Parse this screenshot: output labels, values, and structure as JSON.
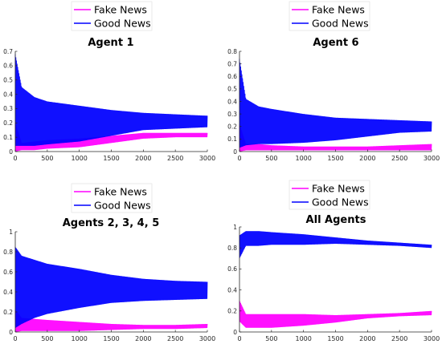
{
  "colors": {
    "fake": "#ff00ff",
    "good": "#0000ff",
    "axis": "#262626",
    "grid_bg": "#ffffff"
  },
  "chart_data": [
    {
      "type": "line",
      "title": "Agent 1",
      "xlim": [
        0,
        3000
      ],
      "ylim": [
        0,
        0.7
      ],
      "xticks": [
        0,
        500,
        1000,
        1500,
        2000,
        2500,
        3000
      ],
      "yticks": [
        0,
        0.1,
        0.2,
        0.3,
        0.4,
        0.5,
        0.6,
        0.7
      ],
      "legend": "top-left, outside",
      "series": [
        {
          "name": "Fake News",
          "x": [
            0,
            100,
            300,
            500,
            1000,
            1500,
            2000,
            2500,
            3000
          ],
          "upper": [
            0.2,
            0.06,
            0.07,
            0.08,
            0.09,
            0.11,
            0.13,
            0.13,
            0.13
          ],
          "lower": [
            0.0,
            0.01,
            0.01,
            0.02,
            0.03,
            0.06,
            0.09,
            0.1,
            0.1
          ]
        },
        {
          "name": "Good News",
          "x": [
            0,
            100,
            300,
            500,
            1000,
            1500,
            2000,
            2500,
            3000
          ],
          "upper": [
            0.68,
            0.45,
            0.38,
            0.35,
            0.32,
            0.29,
            0.27,
            0.26,
            0.25
          ],
          "lower": [
            0.04,
            0.04,
            0.04,
            0.05,
            0.07,
            0.11,
            0.15,
            0.16,
            0.17
          ]
        }
      ]
    },
    {
      "type": "line",
      "title": "Agent 6",
      "xlim": [
        0,
        3000
      ],
      "ylim": [
        0,
        0.8
      ],
      "xticks": [
        0,
        500,
        1000,
        1500,
        2000,
        2500,
        3000
      ],
      "yticks": [
        0,
        0.1,
        0.2,
        0.3,
        0.4,
        0.5,
        0.6,
        0.7,
        0.8
      ],
      "legend": "top-left, outside",
      "series": [
        {
          "name": "Fake News",
          "x": [
            0,
            100,
            300,
            500,
            1000,
            1500,
            2000,
            2500,
            3000
          ],
          "upper": [
            0.22,
            0.06,
            0.06,
            0.05,
            0.04,
            0.04,
            0.04,
            0.05,
            0.06
          ],
          "lower": [
            0.0,
            0.01,
            0.01,
            0.01,
            0.01,
            0.01,
            0.01,
            0.01,
            0.01
          ]
        },
        {
          "name": "Good News",
          "x": [
            0,
            100,
            300,
            500,
            1000,
            1500,
            2000,
            2500,
            3000
          ],
          "upper": [
            0.74,
            0.42,
            0.36,
            0.34,
            0.3,
            0.27,
            0.26,
            0.25,
            0.24
          ],
          "lower": [
            0.03,
            0.05,
            0.06,
            0.06,
            0.07,
            0.09,
            0.12,
            0.15,
            0.16
          ]
        }
      ]
    },
    {
      "type": "line",
      "title": "Agents 2, 3, 4, 5",
      "xlim": [
        0,
        3000
      ],
      "ylim": [
        0,
        1
      ],
      "xticks": [
        0,
        500,
        1000,
        1500,
        2000,
        2500,
        3000
      ],
      "yticks": [
        0,
        0.2,
        0.4,
        0.6,
        0.8,
        1
      ],
      "legend": "top-left, outside",
      "series": [
        {
          "name": "Fake News",
          "x": [
            0,
            100,
            300,
            500,
            1000,
            1500,
            2000,
            2500,
            3000
          ],
          "upper": [
            0.22,
            0.14,
            0.13,
            0.12,
            0.1,
            0.08,
            0.07,
            0.07,
            0.08
          ],
          "lower": [
            0.0,
            0.01,
            0.01,
            0.01,
            0.01,
            0.02,
            0.03,
            0.03,
            0.04
          ]
        },
        {
          "name": "Good News",
          "x": [
            0,
            100,
            300,
            500,
            1000,
            1500,
            2000,
            2500,
            3000
          ],
          "upper": [
            0.85,
            0.76,
            0.72,
            0.68,
            0.63,
            0.57,
            0.53,
            0.51,
            0.5
          ],
          "lower": [
            0.04,
            0.08,
            0.14,
            0.18,
            0.24,
            0.29,
            0.31,
            0.32,
            0.33
          ]
        }
      ]
    },
    {
      "type": "line",
      "title": "All Agents",
      "xlim": [
        0,
        3000
      ],
      "ylim": [
        0,
        1
      ],
      "xticks": [
        0,
        500,
        1000,
        1500,
        2000,
        2500,
        3000
      ],
      "yticks": [
        0,
        0.2,
        0.4,
        0.6,
        0.8,
        1
      ],
      "legend": "top-left, outside",
      "series": [
        {
          "name": "Fake News",
          "x": [
            0,
            100,
            300,
            500,
            1000,
            1500,
            2000,
            2500,
            3000
          ],
          "upper": [
            0.3,
            0.17,
            0.17,
            0.17,
            0.17,
            0.16,
            0.17,
            0.18,
            0.2
          ],
          "lower": [
            0.1,
            0.04,
            0.04,
            0.04,
            0.06,
            0.09,
            0.13,
            0.15,
            0.16
          ]
        },
        {
          "name": "Good News",
          "x": [
            0,
            100,
            300,
            500,
            1000,
            1500,
            2000,
            2500,
            3000
          ],
          "upper": [
            0.92,
            0.96,
            0.96,
            0.95,
            0.93,
            0.9,
            0.87,
            0.85,
            0.83
          ],
          "lower": [
            0.7,
            0.82,
            0.82,
            0.83,
            0.83,
            0.84,
            0.83,
            0.82,
            0.8
          ]
        }
      ]
    }
  ]
}
